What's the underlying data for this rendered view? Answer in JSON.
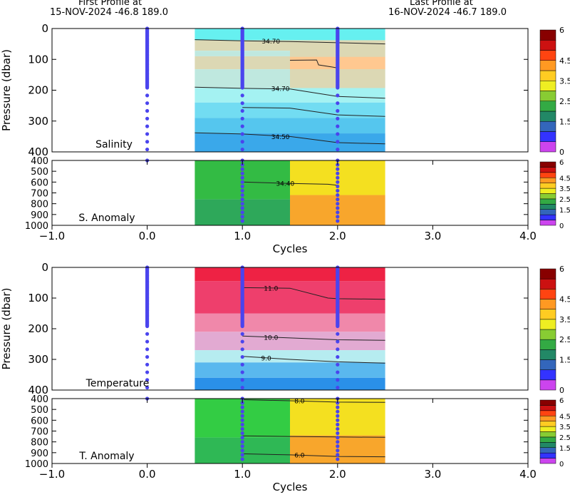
{
  "header": {
    "first_title": "First Profile at",
    "first_info": "15-NOV-2024    -46.8  189.0",
    "last_title": "Last Profile at",
    "last_info": "16-NOV-2024    -46.7  189.0"
  },
  "chart_data": [
    {
      "type": "heatmap",
      "panel": "salinity",
      "label": "Salinity",
      "ylabel": "Pressure (dbar)",
      "xlim": [
        -1.0,
        4.0
      ],
      "ylim": [
        0,
        400
      ],
      "y_ticks": [
        0,
        100,
        200,
        300,
        400
      ],
      "colorbar": [
        "#cc44ee",
        "#3333ff",
        "#3366bb",
        "#228866",
        "#33aa44",
        "#88cc33",
        "#eeee22",
        "#ffcc22",
        "#ff9922",
        "#ff4411",
        "#cc1111",
        "#880000"
      ],
      "colorbar_ticks": [
        "0",
        "1.5",
        "2.5",
        "3.5",
        "4.5",
        "6"
      ],
      "columns": [
        {
          "x0": 0.5,
          "x1": 2.5,
          "bands": [
            {
              "y0": 0,
              "y1": 38,
              "color": "#66f0f0"
            },
            {
              "y0": 38,
              "y1": 72,
              "color": "#dcd8b4"
            },
            {
              "y0": 72,
              "y1": 90,
              "color": "#bfe8df"
            },
            {
              "y0": 90,
              "y1": 132,
              "color": "#dcd8b4"
            },
            {
              "y0": 132,
              "y1": 193,
              "color": "#bfe8df"
            },
            {
              "y0": 193,
              "y1": 240,
              "color": "#a4f2f2"
            },
            {
              "y0": 240,
              "y1": 290,
              "color": "#72dcf2"
            },
            {
              "y0": 290,
              "y1": 340,
              "color": "#55c6ee"
            },
            {
              "y0": 340,
              "y1": 400,
              "color": "#3aa8ea"
            }
          ]
        },
        {
          "x0": 1.5,
          "x1": 2.5,
          "bands": [
            {
              "y0": 40,
              "y1": 52,
              "color": "#dcd8b4"
            },
            {
              "y0": 52,
              "y1": 92,
              "color": "#dcd8b4"
            },
            {
              "y0": 92,
              "y1": 132,
              "color": "#ffc890"
            },
            {
              "y0": 132,
              "y1": 193,
              "color": "#dcd8b4"
            }
          ]
        }
      ],
      "contours": [
        {
          "label": "34.70",
          "points": [
            [
              0.5,
              36
            ],
            [
              1.0,
              40
            ],
            [
              1.5,
              42
            ],
            [
              2.0,
              46
            ],
            [
              2.5,
              50
            ]
          ],
          "label_at": [
            1.3,
            40
          ]
        },
        {
          "label": "34.70",
          "points": [
            [
              0.5,
              190
            ],
            [
              1.0,
              194
            ],
            [
              1.5,
              196
            ],
            [
              2.0,
              220
            ],
            [
              2.5,
              226
            ]
          ],
          "label_at": [
            1.4,
            194
          ]
        },
        {
          "label": "34.50",
          "points": [
            [
              0.5,
              338
            ],
            [
              1.0,
              342
            ],
            [
              1.5,
              350
            ],
            [
              2.0,
              370
            ],
            [
              2.5,
              374
            ]
          ],
          "label_at": [
            1.4,
            350
          ]
        },
        {
          "label": "",
          "points": [
            [
              1.0,
              256
            ],
            [
              1.5,
              258
            ],
            [
              2.0,
              280
            ],
            [
              2.5,
              285
            ]
          ]
        },
        {
          "label": "",
          "points": [
            [
              1.5,
              103
            ],
            [
              1.78,
              102
            ],
            [
              1.8,
              118
            ],
            [
              1.95,
              125
            ],
            [
              2.0,
              128
            ]
          ]
        }
      ]
    },
    {
      "type": "heatmap",
      "panel": "salinity-anomaly",
      "label": "S. Anomaly",
      "xlabel": "Cycles",
      "xlim": [
        -1.0,
        4.0
      ],
      "ylim": [
        400,
        1000
      ],
      "x_ticks": [
        "-1.0",
        "0.0",
        "1.0",
        "2.0",
        "3.0",
        "4.0"
      ],
      "y_ticks": [
        400,
        500,
        600,
        700,
        800,
        900,
        1000
      ],
      "colorbar_ticks": [
        "0",
        "1.5",
        "2.5",
        "3.5",
        "4.5",
        "6"
      ],
      "columns": [
        {
          "x0": 0.5,
          "x1": 1.5,
          "bands": [
            {
              "y0": 400,
              "y1": 760,
              "color": "#33bb44"
            },
            {
              "y0": 760,
              "y1": 1000,
              "color": "#2ea85a"
            }
          ]
        },
        {
          "x0": 1.5,
          "x1": 2.5,
          "bands": [
            {
              "y0": 400,
              "y1": 720,
              "color": "#f4e020"
            },
            {
              "y0": 720,
              "y1": 1000,
              "color": "#f8a62c"
            }
          ]
        }
      ],
      "contours": [
        {
          "label": "34.40",
          "points": [
            [
              1.0,
              600
            ],
            [
              1.5,
              612
            ],
            [
              1.9,
              620
            ],
            [
              2.0,
              630
            ]
          ],
          "label_at": [
            1.45,
            612
          ]
        }
      ]
    },
    {
      "type": "heatmap",
      "panel": "temperature",
      "label": "Temperature",
      "ylabel": "Pressure (dbar)",
      "xlim": [
        -1.0,
        4.0
      ],
      "ylim": [
        0,
        400
      ],
      "y_ticks": [
        0,
        100,
        200,
        300,
        400
      ],
      "colorbar": [
        "#cc44ee",
        "#3333ff",
        "#3366bb",
        "#228866",
        "#33aa44",
        "#88cc33",
        "#eeee22",
        "#ffcc22",
        "#ff9922",
        "#ff4411",
        "#cc1111",
        "#880000"
      ],
      "colorbar_ticks": [
        "0",
        "1.5",
        "2.5",
        "3.5",
        "4.5",
        "6"
      ],
      "columns": [
        {
          "x0": 0.5,
          "x1": 2.5,
          "bands": [
            {
              "y0": 0,
              "y1": 45,
              "color": "#ee2244"
            },
            {
              "y0": 45,
              "y1": 150,
              "color": "#ee3f6c"
            },
            {
              "y0": 150,
              "y1": 210,
              "color": "#f088aa"
            },
            {
              "y0": 210,
              "y1": 270,
              "color": "#e2aad2"
            },
            {
              "y0": 270,
              "y1": 310,
              "color": "#b6ecf0"
            },
            {
              "y0": 310,
              "y1": 360,
              "color": "#5ab8ee"
            },
            {
              "y0": 360,
              "y1": 400,
              "color": "#2a90e8"
            }
          ]
        }
      ],
      "contours": [
        {
          "label": "11.0",
          "points": [
            [
              1.0,
              66
            ],
            [
              1.5,
              68
            ],
            [
              1.9,
              100
            ],
            [
              2.0,
              102
            ],
            [
              2.5,
              104
            ]
          ],
          "label_at": [
            1.3,
            68
          ]
        },
        {
          "label": "10.0",
          "points": [
            [
              1.0,
              224
            ],
            [
              1.5,
              230
            ],
            [
              2.0,
              236
            ],
            [
              2.5,
              238
            ]
          ],
          "label_at": [
            1.3,
            228
          ]
        },
        {
          "label": "9.0",
          "points": [
            [
              1.0,
              290
            ],
            [
              1.5,
              300
            ],
            [
              2.0,
              308
            ],
            [
              2.5,
              312
            ]
          ],
          "label_at": [
            1.25,
            295
          ]
        }
      ]
    },
    {
      "type": "heatmap",
      "panel": "temperature-anomaly",
      "label": "T. Anomaly",
      "xlabel": "Cycles",
      "xlim": [
        -1.0,
        4.0
      ],
      "ylim": [
        400,
        1000
      ],
      "x_ticks": [
        "-1.0",
        "0.0",
        "1.0",
        "2.0",
        "3.0",
        "4.0"
      ],
      "y_ticks": [
        400,
        500,
        600,
        700,
        800,
        900,
        1000
      ],
      "colorbar_ticks": [
        "0",
        "1.5",
        "2.5",
        "3.5",
        "4.5",
        "6"
      ],
      "columns": [
        {
          "x0": 0.5,
          "x1": 1.5,
          "bands": [
            {
              "y0": 400,
              "y1": 760,
              "color": "#33cc44"
            },
            {
              "y0": 760,
              "y1": 1000,
              "color": "#2fb855"
            }
          ]
        },
        {
          "x0": 1.5,
          "x1": 2.5,
          "bands": [
            {
              "y0": 400,
              "y1": 740,
              "color": "#f4e020"
            },
            {
              "y0": 740,
              "y1": 1000,
              "color": "#f8a62c"
            }
          ]
        }
      ],
      "contours": [
        {
          "label": "8.0",
          "points": [
            [
              1.0,
              410
            ],
            [
              1.5,
              420
            ],
            [
              2.0,
              432
            ],
            [
              2.5,
              435
            ]
          ],
          "label_at": [
            1.6,
            420
          ]
        },
        {
          "label": "",
          "points": [
            [
              1.0,
              745
            ],
            [
              1.5,
              750
            ],
            [
              2.0,
              755
            ],
            [
              2.5,
              758
            ]
          ]
        },
        {
          "label": "6.0",
          "points": [
            [
              1.0,
              910
            ],
            [
              1.5,
              920
            ],
            [
              2.0,
              935
            ],
            [
              2.5,
              938
            ]
          ],
          "label_at": [
            1.6,
            920
          ]
        }
      ]
    }
  ],
  "profiles": [
    {
      "x": 0.0,
      "last_pressure": 430
    },
    {
      "x": 1.0,
      "last_pressure": 995
    },
    {
      "x": 2.0,
      "last_pressure": 995
    }
  ],
  "colors": {
    "profile_dots": "#4a44ee",
    "contour": "#222222"
  }
}
